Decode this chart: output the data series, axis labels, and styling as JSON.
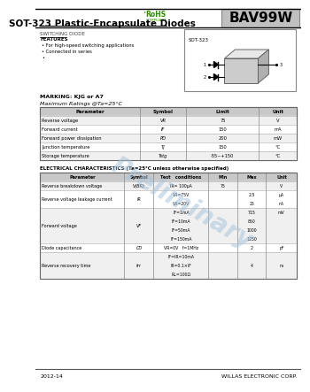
{
  "title": "SOT-323 Plastic-Encapsulate Diodes",
  "part_number": "BAV99W",
  "section1_title": "SWITCHING DIODE",
  "features_title": "FEATURES",
  "features": [
    "For high-speed switching applications",
    "Connected in series",
    ""
  ],
  "marking": "MARKING: KJG or A7",
  "max_ratings_title": "Maximum Ratings @Ta=25°C",
  "max_ratings_headers": [
    "Parameter",
    "Symbol",
    "Limit",
    "Unit"
  ],
  "max_ratings_rows": [
    [
      "Reverse voltage",
      "VR",
      "75",
      "V"
    ],
    [
      "Forward current",
      "IF",
      "150",
      "mA"
    ],
    [
      "Forward power dissipation",
      "PD",
      "200",
      "mW"
    ],
    [
      "Junction temperature",
      "Tj",
      "150",
      "°C"
    ],
    [
      "Storage temperature",
      "Tstg",
      "-55~+150",
      "°C"
    ]
  ],
  "elec_char_title": "ELECTRICAL CHARACTERISTICS (Ta=25°C unless otherwise specified)",
  "elec_char_headers": [
    "Parameter",
    "Symbol",
    "Test   conditions",
    "Min",
    "Max",
    "Unit"
  ],
  "elec_char_rows": [
    {
      "param": "Reverse breakdown voltage",
      "symbol": "V(BR)",
      "conditions": [
        "IR= 100μA"
      ],
      "min": [
        "75"
      ],
      "max": [
        ""
      ],
      "unit": [
        "V"
      ]
    },
    {
      "param": "Reverse voltage leakage current",
      "symbol": "IR",
      "conditions": [
        "VR=75V",
        "VR=20V"
      ],
      "min": [
        "",
        ""
      ],
      "max": [
        "2.5",
        "25"
      ],
      "unit": [
        "μA",
        "nA"
      ]
    },
    {
      "param": "Forward voltage",
      "symbol": "VF",
      "conditions": [
        "IF=1mA",
        "IF=10mA",
        "IF=50mA",
        "IF=150mA"
      ],
      "min": [
        "",
        "",
        "",
        ""
      ],
      "max": [
        "715",
        "850",
        "1000",
        "1250"
      ],
      "unit": [
        "mV",
        "",
        "",
        ""
      ]
    },
    {
      "param": "Diode capacitance",
      "symbol": "CD",
      "conditions": [
        "VR=0V   f=1MHz"
      ],
      "min": [
        ""
      ],
      "max": [
        "2"
      ],
      "unit": [
        "pF"
      ]
    },
    {
      "param": "Reverse recovery time",
      "symbol": "trr",
      "conditions": [
        "IF=IR=10mA",
        "IR=0.1×IF",
        "RL=100Ω"
      ],
      "min": [
        "",
        "",
        ""
      ],
      "max": [
        "",
        "4",
        ""
      ],
      "unit": [
        "",
        "ns",
        ""
      ]
    }
  ],
  "footer_left": "2012-14",
  "footer_right": "WILLAS ELECTRONIC CORP.",
  "watermark": "Preliminary",
  "bg_color": "#ffffff",
  "table_header_bg": "#c8c8c8",
  "table_line_color": "#999999",
  "text_color": "#000000",
  "header_line_color": "#000000"
}
